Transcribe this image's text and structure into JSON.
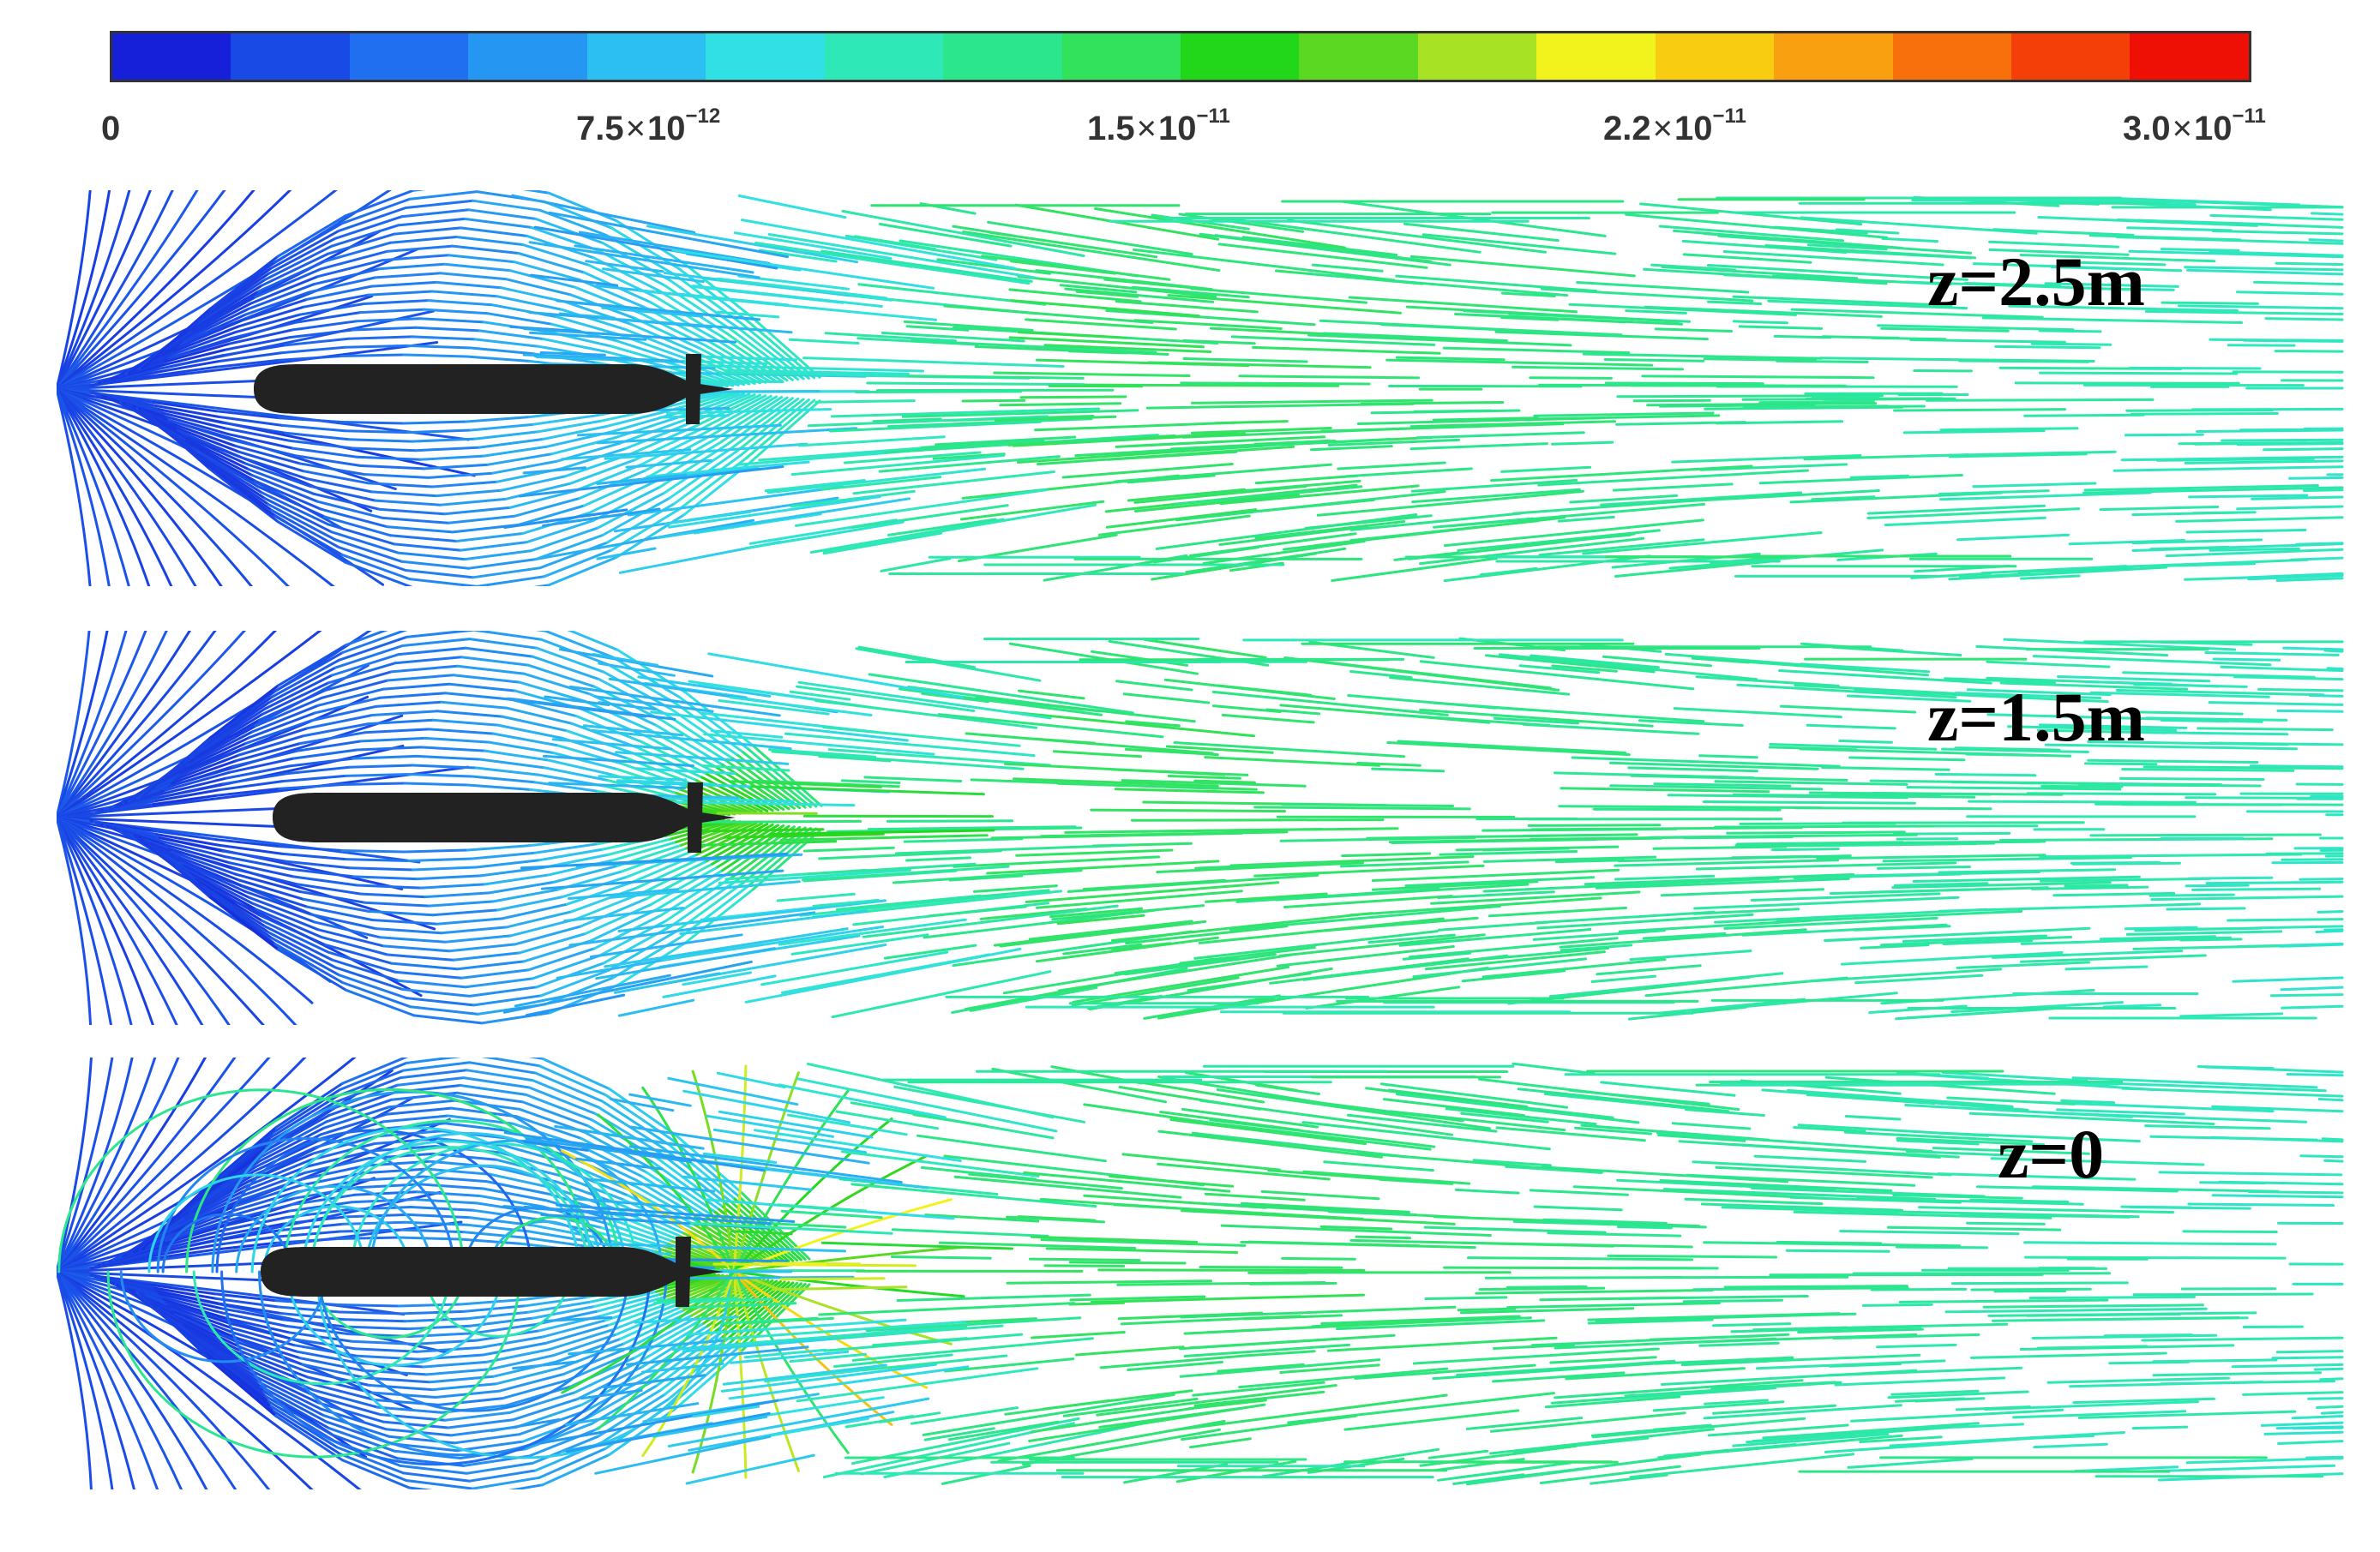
{
  "colorbar": {
    "ticks": [
      {
        "mantissa": "0",
        "exponent": ""
      },
      {
        "mantissa": "7.5",
        "exponent": "−12"
      },
      {
        "mantissa": "1.5",
        "exponent": "−11"
      },
      {
        "mantissa": "2.2",
        "exponent": "−11"
      },
      {
        "mantissa": "3.0",
        "exponent": "−11"
      }
    ],
    "tick_values": [
      0,
      7.5e-12,
      1.5e-11,
      2.2e-11,
      3e-11
    ],
    "colors": [
      "#1520d8",
      "#1a4ae6",
      "#1f6ff0",
      "#2596f2",
      "#2cc0f2",
      "#31e0e4",
      "#2ee8b8",
      "#2be68c",
      "#33e25c",
      "#22d61a",
      "#5ad822",
      "#a8e224",
      "#f2f21c",
      "#f8cc10",
      "#f8a010",
      "#f8700c",
      "#f44008",
      "#ee1004"
    ],
    "range": [
      0,
      3e-11
    ]
  },
  "panels": [
    {
      "label": "z=2.5m",
      "value": 2.5,
      "variant": "far"
    },
    {
      "label": "z=1.5m",
      "value": 1.5,
      "variant": "mid"
    },
    {
      "label": "z=0",
      "value": 0,
      "variant": "near"
    }
  ],
  "colors": {
    "hull": "#222222",
    "background": "#ffffff"
  }
}
